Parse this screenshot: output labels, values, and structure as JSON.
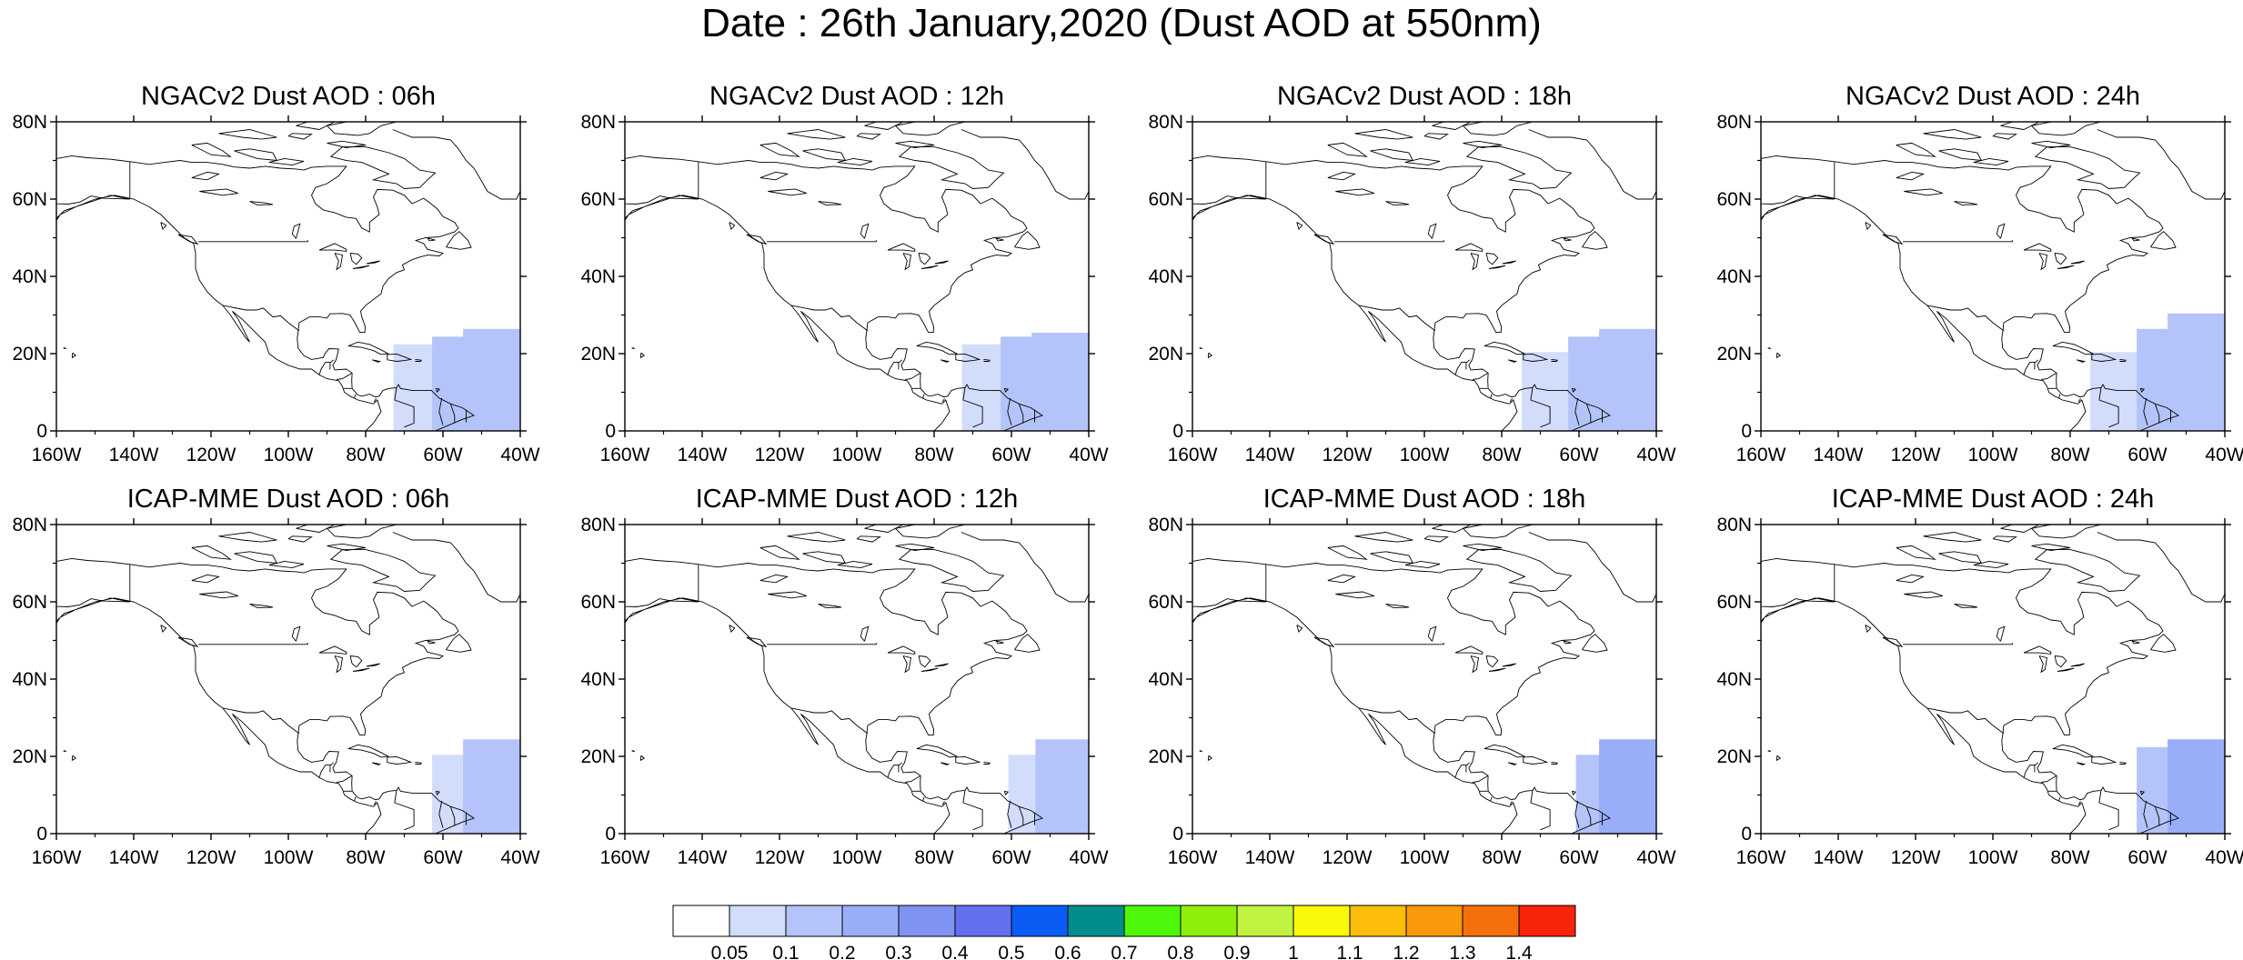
{
  "title": "Date : 26th January,2020 (Dust AOD at 550nm)",
  "lat_labels": [
    "80N",
    "60N",
    "40N",
    "20N",
    "0"
  ],
  "lon_labels": [
    "160W",
    "140W",
    "120W",
    "100W",
    "80W",
    "60W",
    "40W"
  ],
  "panels": [
    {
      "title": "NGACv2 Dust AOD : 06h",
      "row": 0,
      "col": 0,
      "plume": [
        {
          "lon": -60,
          "lat": 8,
          "aod": 0.08
        },
        {
          "lon": -50,
          "lat": 10,
          "aod": 0.1
        },
        {
          "lon": -42,
          "lat": 12,
          "aod": 0.15
        }
      ]
    },
    {
      "title": "NGACv2 Dust AOD : 12h",
      "row": 0,
      "col": 1,
      "plume": [
        {
          "lon": -60,
          "lat": 8,
          "aod": 0.08
        },
        {
          "lon": -50,
          "lat": 10,
          "aod": 0.1
        },
        {
          "lon": -42,
          "lat": 11,
          "aod": 0.12
        }
      ]
    },
    {
      "title": "NGACv2 Dust AOD : 18h",
      "row": 0,
      "col": 2,
      "plume": [
        {
          "lon": -62,
          "lat": 6,
          "aod": 0.08
        },
        {
          "lon": -50,
          "lat": 10,
          "aod": 0.12
        },
        {
          "lon": -42,
          "lat": 12,
          "aod": 0.12
        }
      ]
    },
    {
      "title": "NGACv2 Dust AOD : 24h",
      "row": 0,
      "col": 3,
      "plume": [
        {
          "lon": -62,
          "lat": 6,
          "aod": 0.08
        },
        {
          "lon": -50,
          "lat": 12,
          "aod": 0.12
        },
        {
          "lon": -42,
          "lat": 16,
          "aod": 0.12
        }
      ]
    },
    {
      "title": "ICAP-MME Dust AOD : 06h",
      "row": 1,
      "col": 0,
      "plume": [
        {
          "lon": -50,
          "lat": 6,
          "aod": 0.08
        },
        {
          "lon": -42,
          "lat": 10,
          "aod": 0.1
        }
      ]
    },
    {
      "title": "ICAP-MME Dust AOD : 12h",
      "row": 1,
      "col": 1,
      "plume": [
        {
          "lon": -48,
          "lat": 6,
          "aod": 0.08
        },
        {
          "lon": -41,
          "lat": 10,
          "aod": 0.15
        }
      ]
    },
    {
      "title": "ICAP-MME Dust AOD : 18h",
      "row": 1,
      "col": 2,
      "plume": [
        {
          "lon": -48,
          "lat": 6,
          "aod": 0.1
        },
        {
          "lon": -42,
          "lat": 10,
          "aod": 0.2
        }
      ]
    },
    {
      "title": "ICAP-MME Dust AOD : 24h",
      "row": 1,
      "col": 3,
      "plume": [
        {
          "lon": -50,
          "lat": 8,
          "aod": 0.12
        },
        {
          "lon": -42,
          "lat": 10,
          "aod": 0.25
        }
      ]
    }
  ],
  "colorbar": {
    "labels": [
      "0.05",
      "0.1",
      "0.2",
      "0.3",
      "0.4",
      "0.5",
      "0.6",
      "0.7",
      "0.8",
      "0.9",
      "1",
      "1.1",
      "1.2",
      "1.3",
      "1.4"
    ],
    "colors": [
      "#ffffff",
      "#d2dcfb",
      "#b4c4fa",
      "#98aef8",
      "#7f93f3",
      "#6470f0",
      "#0a5cf5",
      "#008e8c",
      "#4ef70a",
      "#90ef0a",
      "#c2f240",
      "#fbf90a",
      "#fbbd0a",
      "#f89a0a",
      "#f5700a",
      "#f8230a"
    ]
  },
  "colors": {
    "outline": "#000000",
    "background": "#ffffff"
  }
}
